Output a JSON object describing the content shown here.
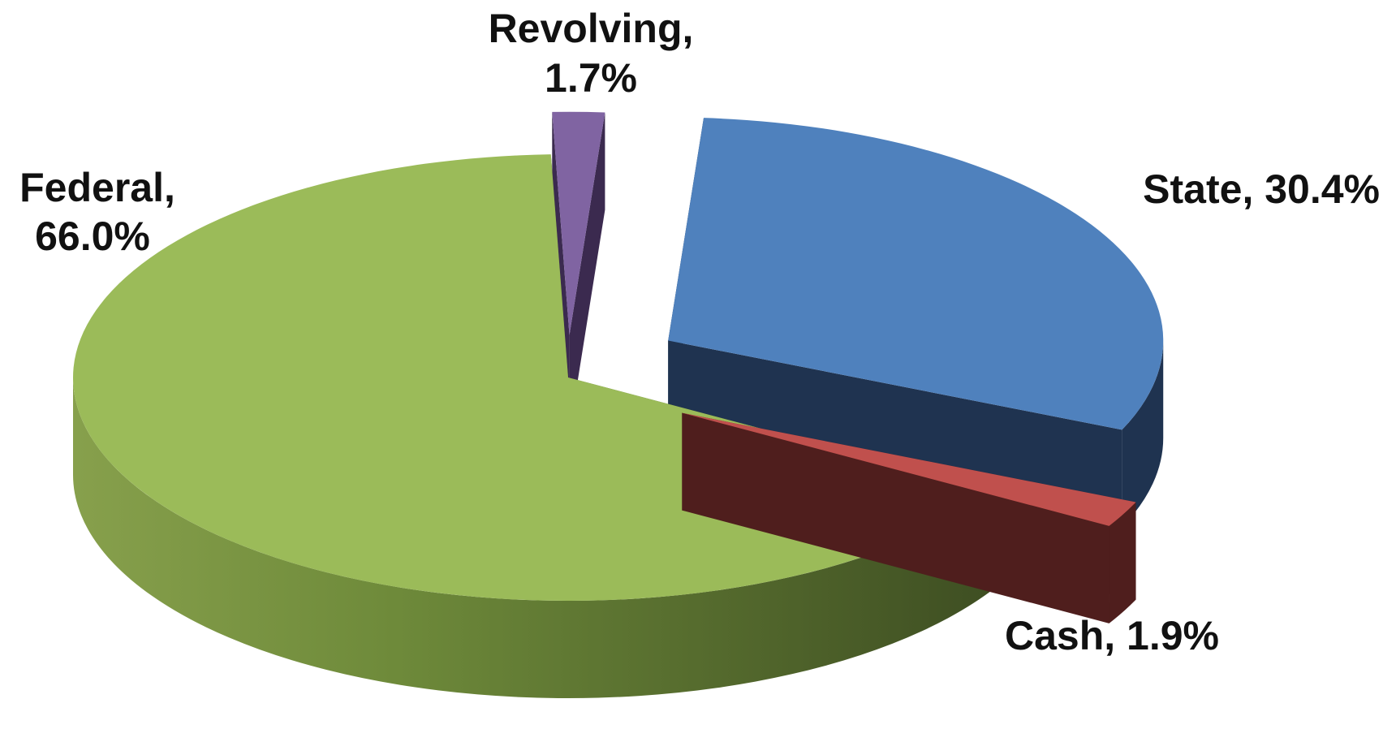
{
  "chart_data": {
    "type": "pie",
    "style": "3d-exploded",
    "title": "",
    "legend": "none",
    "slices": [
      {
        "label": "Federal",
        "value": 66.0,
        "value_label": "66.0%",
        "color": "#9BBB59",
        "side_color": "#556B2F",
        "exploded": false
      },
      {
        "label": "Revolving",
        "value": 1.7,
        "value_label": "1.7%",
        "color": "#8064A2",
        "side_color": "#3B2A4F",
        "exploded": true
      },
      {
        "label": "State",
        "value": 30.4,
        "value_label": "30.4%",
        "color": "#4F81BD",
        "side_color": "#1F3350",
        "exploded": true
      },
      {
        "label": "Cash",
        "value": 1.9,
        "value_label": "1.9%",
        "color": "#C0504D",
        "side_color": "#4F1E1D",
        "exploded": true
      }
    ]
  }
}
